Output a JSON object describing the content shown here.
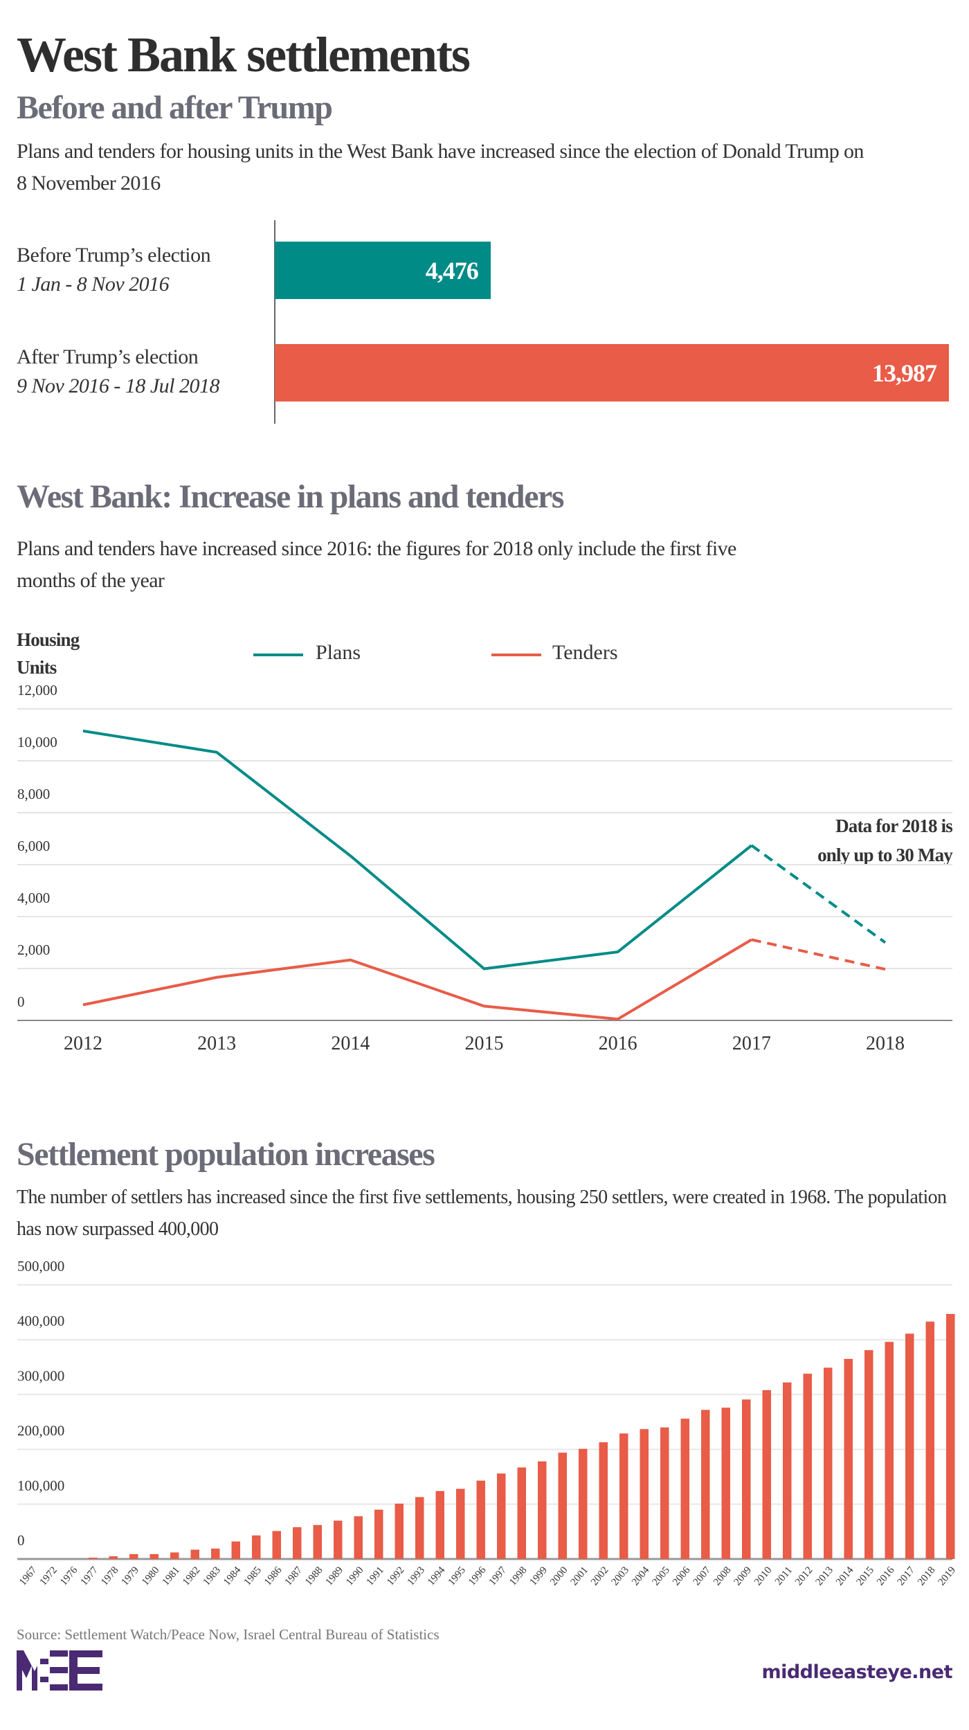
{
  "header": {
    "title": "West Bank settlements",
    "subtitle": "Before and after Trump",
    "description": "Plans and tenders for housing units in the West Bank have increased since the election of Donald Trump on 8 November 2016"
  },
  "colors": {
    "teal": "#008b87",
    "red": "#e85c48",
    "text": "#333333",
    "grey": "#6c6c78",
    "brand": "#4a2a73"
  },
  "chart_data": [
    {
      "type": "bar",
      "orientation": "horizontal",
      "categories": [
        {
          "label": "Before Trump’s election",
          "sublabel": "1 Jan - 8 Nov 2016"
        },
        {
          "label": "After Trump’s election",
          "sublabel": "9 Nov 2016 - 18 Jul 2018"
        }
      ],
      "values": [
        4476,
        13987
      ],
      "value_labels": [
        "4,476",
        "13,987"
      ],
      "colors": [
        "#008b87",
        "#e85c48"
      ]
    },
    {
      "type": "line",
      "title": "West Bank: Increase in plans and tenders",
      "subtitle": "Plans and tenders have increased since 2016: the figures for 2018 only include the first five months of the year",
      "ylabel": "Housing Units",
      "x": [
        "2012",
        "2013",
        "2014",
        "2015",
        "2016",
        "2017",
        "2018"
      ],
      "ylim": [
        0,
        12000
      ],
      "yticks": [
        "0",
        "2,000",
        "4,000",
        "6,000",
        "8,000",
        "10,000",
        "12,000"
      ],
      "grid": true,
      "legend": "top",
      "series": [
        {
          "name": "Plans",
          "color": "#008b87",
          "values": [
            11150,
            10330,
            6340,
            1990,
            2640,
            6740,
            3000
          ]
        },
        {
          "name": "Tenders",
          "color": "#e85c48",
          "values": [
            600,
            1660,
            2330,
            550,
            50,
            3110,
            1970
          ]
        }
      ],
      "dashed_from": "2017",
      "annotation": [
        "Data for 2018 is",
        "only up to 30 May"
      ]
    },
    {
      "type": "bar",
      "title": "Settlement population increases",
      "subtitle": "The number of settlers has increased since the first five settlements, housing 250 settlers, were created in 1968. The population has now surpassed 400,000",
      "categories": [
        "1967",
        "1972",
        "1976",
        "1977",
        "1978",
        "1979",
        "1980",
        "1981",
        "1982",
        "1983",
        "1984",
        "1985",
        "1986",
        "1987",
        "1988",
        "1989",
        "1990",
        "1991",
        "1992",
        "1993",
        "1994",
        "1995",
        "1996",
        "1997",
        "1998",
        "1999",
        "2000",
        "2001",
        "2002",
        "2003",
        "2004",
        "2005",
        "2006",
        "2007",
        "2008",
        "2009",
        "2010",
        "2011",
        "2012",
        "2013",
        "2014",
        "2015",
        "2016",
        "2017",
        "2018",
        "2019"
      ],
      "values": [
        0,
        0,
        0,
        2500,
        5000,
        9000,
        9000,
        12000,
        17000,
        19000,
        32000,
        43000,
        51000,
        58000,
        62000,
        70000,
        78000,
        90000,
        101000,
        113000,
        124000,
        128000,
        143000,
        156000,
        167000,
        178000,
        194000,
        201000,
        213000,
        229000,
        237000,
        240000,
        256000,
        272000,
        276000,
        291000,
        308000,
        322000,
        338000,
        349000,
        365000,
        381000,
        396000,
        411000,
        433000,
        447000
      ],
      "ylim": [
        0,
        500000
      ],
      "yticks": [
        "0",
        "100,000",
        "200,000",
        "300,000",
        "400,000",
        "500,000"
      ],
      "grid": true,
      "color": "#e85c48"
    }
  ],
  "footer": {
    "source": "Source: Settlement Watch/Peace Now, Israel Central Bureau of Statistics",
    "logo_text": "MEE",
    "site": "middleeasteye.net"
  }
}
